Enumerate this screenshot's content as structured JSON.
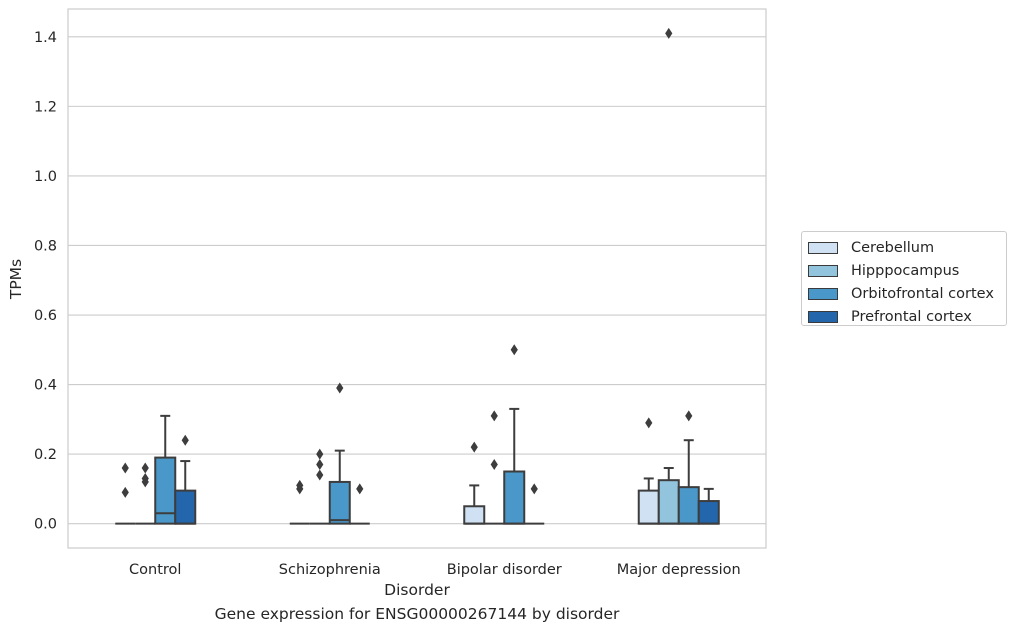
{
  "chart_data": {
    "type": "box",
    "xlabel": "Disorder",
    "ylabel": "TPMs",
    "caption": "Gene expression for ENSG00000267144 by disorder",
    "ylim": [
      -0.07,
      1.48
    ],
    "yticks": [
      "0.0",
      "0.2",
      "0.4",
      "0.6",
      "0.8",
      "1.0",
      "1.2",
      "1.4"
    ],
    "grid": true,
    "legend_position": "right",
    "categories": [
      "Control",
      "Schizophrenia",
      "Bipolar disorder",
      "Major depression"
    ],
    "series": [
      {
        "name": "Cerebellum",
        "color": "#cfe1f2",
        "boxes": [
          {
            "q1": 0.0,
            "median": 0.0,
            "q3": 0.0,
            "whisker_low": 0.0,
            "whisker_high": 0.0,
            "outliers": [
              0.16,
              0.09
            ]
          },
          {
            "q1": 0.0,
            "median": 0.0,
            "q3": 0.0,
            "whisker_low": 0.0,
            "whisker_high": 0.0,
            "outliers": [
              0.11,
              0.1
            ]
          },
          {
            "q1": 0.0,
            "median": 0.0,
            "q3": 0.05,
            "whisker_low": 0.0,
            "whisker_high": 0.11,
            "outliers": [
              0.22
            ]
          },
          {
            "q1": 0.0,
            "median": 0.0,
            "q3": 0.095,
            "whisker_low": 0.0,
            "whisker_high": 0.13,
            "outliers": [
              0.29
            ]
          }
        ]
      },
      {
        "name": "Hipppocampus",
        "color": "#93c4de",
        "boxes": [
          {
            "q1": 0.0,
            "median": 0.0,
            "q3": 0.0,
            "whisker_low": 0.0,
            "whisker_high": 0.0,
            "outliers": [
              0.16,
              0.13,
              0.12
            ]
          },
          {
            "q1": 0.0,
            "median": 0.0,
            "q3": 0.0,
            "whisker_low": 0.0,
            "whisker_high": 0.0,
            "outliers": [
              0.2,
              0.17,
              0.14
            ]
          },
          {
            "q1": 0.0,
            "median": 0.0,
            "q3": 0.0,
            "whisker_low": 0.0,
            "whisker_high": 0.0,
            "outliers": [
              0.31,
              0.17
            ]
          },
          {
            "q1": 0.0,
            "median": 0.0,
            "q3": 0.125,
            "whisker_low": 0.0,
            "whisker_high": 0.16,
            "outliers": [
              1.41
            ]
          }
        ]
      },
      {
        "name": "Orbitofrontal cortex",
        "color": "#4a98c9",
        "boxes": [
          {
            "q1": 0.0,
            "median": 0.03,
            "q3": 0.19,
            "whisker_low": 0.0,
            "whisker_high": 0.31,
            "outliers": []
          },
          {
            "q1": 0.0,
            "median": 0.01,
            "q3": 0.12,
            "whisker_low": 0.0,
            "whisker_high": 0.21,
            "outliers": [
              0.39
            ]
          },
          {
            "q1": 0.0,
            "median": 0.0,
            "q3": 0.15,
            "whisker_low": 0.0,
            "whisker_high": 0.33,
            "outliers": [
              0.5
            ]
          },
          {
            "q1": 0.0,
            "median": 0.0,
            "q3": 0.105,
            "whisker_low": 0.0,
            "whisker_high": 0.24,
            "outliers": [
              0.31
            ]
          }
        ]
      },
      {
        "name": "Prefrontal cortex",
        "color": "#2366ac",
        "boxes": [
          {
            "q1": 0.0,
            "median": 0.0,
            "q3": 0.095,
            "whisker_low": 0.0,
            "whisker_high": 0.18,
            "outliers": [
              0.24
            ]
          },
          {
            "q1": 0.0,
            "median": 0.0,
            "q3": 0.0,
            "whisker_low": 0.0,
            "whisker_high": 0.0,
            "outliers": [
              0.1
            ]
          },
          {
            "q1": 0.0,
            "median": 0.0,
            "q3": 0.0,
            "whisker_low": 0.0,
            "whisker_high": 0.0,
            "outliers": [
              0.1
            ]
          },
          {
            "q1": 0.0,
            "median": 0.0,
            "q3": 0.065,
            "whisker_low": 0.0,
            "whisker_high": 0.1,
            "outliers": []
          }
        ]
      }
    ]
  }
}
